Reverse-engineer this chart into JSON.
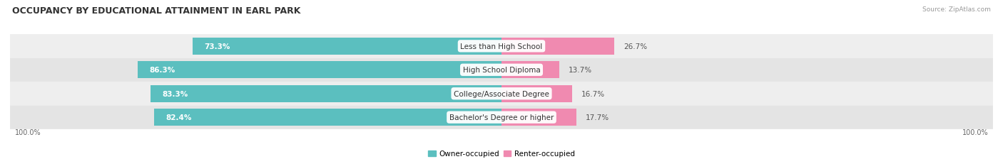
{
  "title": "OCCUPANCY BY EDUCATIONAL ATTAINMENT IN EARL PARK",
  "source": "Source: ZipAtlas.com",
  "categories": [
    "Less than High School",
    "High School Diploma",
    "College/Associate Degree",
    "Bachelor's Degree or higher"
  ],
  "owner_values": [
    73.3,
    86.3,
    83.3,
    82.4
  ],
  "renter_values": [
    26.7,
    13.7,
    16.7,
    17.7
  ],
  "owner_color": "#5BBFBF",
  "renter_color": "#F08AB0",
  "row_bg_colors": [
    "#EEEEEE",
    "#E4E4E4"
  ],
  "title_fontsize": 9,
  "bar_label_fontsize": 7.5,
  "cat_label_fontsize": 7.5,
  "tick_fontsize": 7,
  "legend_fontsize": 7.5,
  "source_fontsize": 6.5,
  "left_label": "100.0%",
  "right_label": "100.0%",
  "figsize": [
    14.06,
    2.32
  ],
  "dpi": 100
}
